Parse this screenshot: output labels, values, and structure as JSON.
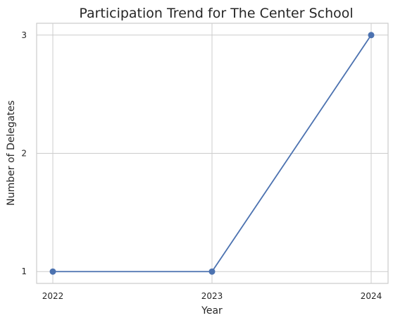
{
  "chart_data": {
    "type": "line",
    "title": "Participation Trend for The Center School",
    "xlabel": "Year",
    "ylabel": "Number of Delegates",
    "categories": [
      "2022",
      "2023",
      "2024"
    ],
    "series": [
      {
        "values": [
          1,
          1,
          3
        ],
        "color": "#4c72b0",
        "marker": "circle"
      }
    ],
    "yticks": [
      1,
      2,
      3
    ],
    "ylim": [
      0.9,
      3.1
    ],
    "grid": true
  }
}
